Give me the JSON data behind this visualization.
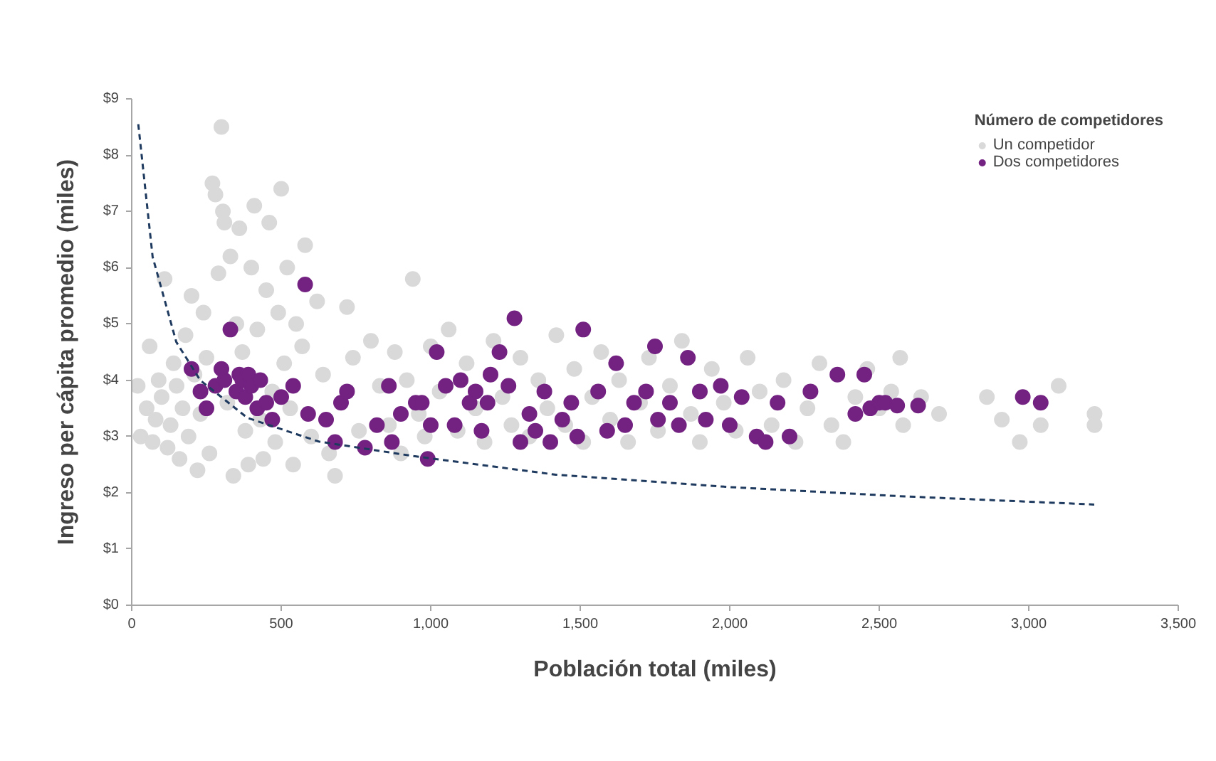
{
  "chart_data": {
    "type": "scatter",
    "xlabel": "Población total (miles)",
    "ylabel": "Ingreso per cápita promedio (miles)",
    "legend_title": "Número de competidores",
    "legend": "top right",
    "grid": false,
    "marker": "circle",
    "xlim": [
      0,
      3500
    ],
    "xticks": [
      0,
      {
        "value": 500,
        "label": "500"
      },
      {
        "value": 1000,
        "label": "1,000"
      },
      {
        "value": 1500,
        "label": "1,500"
      },
      {
        "value": 2000,
        "label": "2,000"
      },
      {
        "value": 2500,
        "label": "2,500"
      },
      {
        "value": 3000,
        "label": "3,000"
      },
      {
        "value": 3500,
        "label": "3,500"
      }
    ],
    "ylim": [
      0,
      9
    ],
    "yticks": [
      {
        "value": 0,
        "label": "$0"
      },
      {
        "value": 1,
        "label": "$1"
      },
      {
        "value": 2,
        "label": "$2"
      },
      {
        "value": 3,
        "label": "$3"
      },
      {
        "value": 4,
        "label": "$4"
      },
      {
        "value": 5,
        "label": "$5"
      },
      {
        "value": 6,
        "label": "$6"
      },
      {
        "value": 7,
        "label": "$7"
      },
      {
        "value": 8,
        "label": "$8"
      },
      {
        "value": 9,
        "label": "$9"
      }
    ],
    "series": [
      {
        "name": "Un competidor",
        "color": "#d9d9d9",
        "x": [
          20,
          30,
          50,
          60,
          70,
          80,
          90,
          100,
          110,
          120,
          130,
          140,
          150,
          160,
          170,
          180,
          190,
          200,
          210,
          220,
          230,
          240,
          250,
          260,
          270,
          280,
          290,
          300,
          305,
          310,
          320,
          330,
          340,
          350,
          360,
          370,
          380,
          390,
          400,
          410,
          420,
          430,
          440,
          450,
          460,
          470,
          480,
          490,
          500,
          510,
          520,
          530,
          540,
          550,
          570,
          580,
          600,
          620,
          640,
          660,
          680,
          700,
          720,
          740,
          760,
          780,
          800,
          830,
          860,
          880,
          900,
          920,
          940,
          960,
          980,
          1000,
          1030,
          1060,
          1090,
          1120,
          1150,
          1180,
          1210,
          1240,
          1270,
          1300,
          1330,
          1360,
          1390,
          1420,
          1450,
          1480,
          1510,
          1540,
          1570,
          1600,
          1630,
          1660,
          1700,
          1730,
          1760,
          1800,
          1840,
          1870,
          1900,
          1940,
          1980,
          2020,
          2060,
          2100,
          2140,
          2180,
          2220,
          2260,
          2300,
          2340,
          2380,
          2420,
          2460,
          2500,
          2540,
          2570,
          2580,
          2640,
          2700,
          2860,
          2910,
          2970,
          3040,
          3100,
          3220,
          3220
        ],
        "values": [
          3.9,
          3.0,
          3.5,
          4.6,
          2.9,
          3.3,
          4.0,
          3.7,
          5.8,
          2.8,
          3.2,
          4.3,
          3.9,
          2.6,
          3.5,
          4.8,
          3.0,
          5.5,
          4.1,
          2.4,
          3.4,
          5.2,
          4.4,
          2.7,
          7.5,
          7.3,
          5.9,
          8.5,
          7.0,
          6.8,
          3.6,
          6.2,
          2.3,
          5.0,
          6.7,
          4.5,
          3.1,
          2.5,
          6.0,
          7.1,
          4.9,
          3.3,
          2.6,
          5.6,
          6.8,
          3.8,
          2.9,
          5.2,
          7.4,
          4.3,
          6.0,
          3.5,
          2.5,
          5.0,
          4.6,
          6.4,
          3.0,
          5.4,
          4.1,
          2.7,
          2.3,
          null,
          5.3,
          4.4,
          3.1,
          null,
          4.7,
          3.9,
          3.2,
          4.5,
          2.7,
          4.0,
          5.8,
          3.4,
          3.0,
          4.6,
          3.8,
          4.9,
          3.1,
          4.3,
          3.5,
          2.9,
          4.7,
          3.7,
          3.2,
          4.4,
          3.0,
          4.0,
          3.5,
          4.8,
          3.2,
          4.2,
          2.9,
          3.7,
          4.5,
          3.3,
          4.0,
          2.9,
          3.6,
          4.4,
          3.1,
          3.9,
          4.7,
          3.4,
          2.9,
          4.2,
          3.6,
          3.1,
          4.4,
          3.8,
          3.2,
          4.0,
          2.9,
          3.5,
          4.3,
          3.2,
          2.9,
          3.7,
          4.2,
          3.5,
          3.8,
          4.4,
          3.2,
          3.7,
          3.4,
          3.7,
          3.3,
          2.9,
          3.2,
          3.9,
          3.4,
          3.2
        ]
      },
      {
        "name": "Dos competidores",
        "color": "#732282",
        "x": [
          200,
          230,
          250,
          280,
          300,
          310,
          330,
          350,
          360,
          370,
          380,
          390,
          400,
          420,
          430,
          450,
          470,
          500,
          540,
          580,
          590,
          650,
          680,
          700,
          720,
          780,
          820,
          860,
          870,
          900,
          950,
          970,
          990,
          1000,
          1020,
          1050,
          1080,
          1100,
          1130,
          1150,
          1170,
          1190,
          1200,
          1230,
          1260,
          1280,
          1300,
          1330,
          1350,
          1380,
          1400,
          1440,
          1470,
          1490,
          1510,
          1560,
          1590,
          1620,
          1650,
          1680,
          1720,
          1750,
          1760,
          1800,
          1830,
          1860,
          1900,
          1920,
          1970,
          2000,
          2040,
          2090,
          2120,
          2160,
          2200,
          2270,
          2360,
          2420,
          2450,
          2470,
          2500,
          2520,
          2560,
          2630,
          2980,
          3040
        ],
        "values": [
          4.2,
          3.8,
          3.5,
          3.9,
          4.2,
          4.0,
          4.9,
          3.8,
          4.1,
          4.0,
          3.7,
          4.1,
          3.9,
          3.5,
          4.0,
          3.6,
          3.3,
          3.7,
          3.9,
          5.7,
          3.4,
          3.3,
          2.9,
          3.6,
          3.8,
          2.8,
          3.2,
          3.9,
          2.9,
          3.4,
          3.6,
          3.6,
          2.6,
          3.2,
          4.5,
          3.9,
          3.2,
          4.0,
          3.6,
          3.8,
          3.1,
          3.6,
          4.1,
          4.5,
          3.9,
          5.1,
          2.9,
          3.4,
          3.1,
          3.8,
          2.9,
          3.3,
          3.6,
          3.0,
          4.9,
          3.8,
          3.1,
          4.3,
          3.2,
          3.6,
          3.8,
          4.6,
          3.3,
          3.6,
          3.2,
          4.4,
          3.8,
          3.3,
          3.9,
          3.2,
          3.7,
          3.0,
          2.9,
          3.6,
          3.0,
          3.8,
          4.1,
          3.4,
          4.1,
          3.5,
          3.6,
          3.6,
          3.55,
          3.55,
          3.7,
          3.6
        ]
      },
      {
        "type": "line",
        "marker": "none",
        "line_style": "dashed",
        "color": "#1f3a5f",
        "x": [
          22,
          70,
          149,
          229,
          387,
          625,
          943,
          1419,
          2000,
          2562,
          3219
        ],
        "values": [
          8.55,
          6.19,
          4.68,
          4.0,
          3.33,
          2.91,
          2.65,
          2.32,
          2.1,
          1.94,
          1.79
        ]
      }
    ]
  }
}
